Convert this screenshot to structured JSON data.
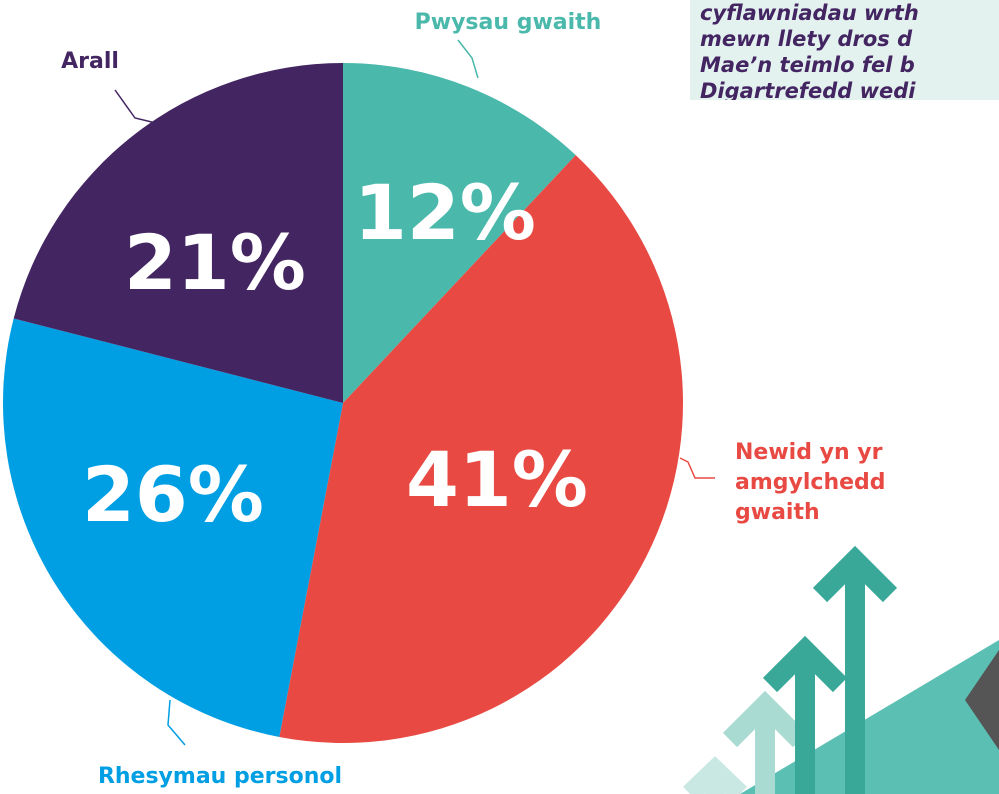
{
  "chart_data": {
    "type": "pie",
    "categories": [
      "Pwysau gwaith",
      "Newid yn yr amgylchedd gwaith",
      "Rhesymau personol",
      "Arall"
    ],
    "values": [
      12,
      41,
      26,
      21
    ],
    "value_labels": [
      "12%",
      "41%",
      "26%",
      "21%"
    ],
    "colors": [
      "#4ab8ab",
      "#e84a43",
      "#009fe3",
      "#432562"
    ]
  },
  "quote": {
    "lines": [
      "cyflawniadau wrth",
      "mewn llety dros d",
      "Mae’n teimlo fel b",
      "Digartrefedd wedi"
    ]
  }
}
